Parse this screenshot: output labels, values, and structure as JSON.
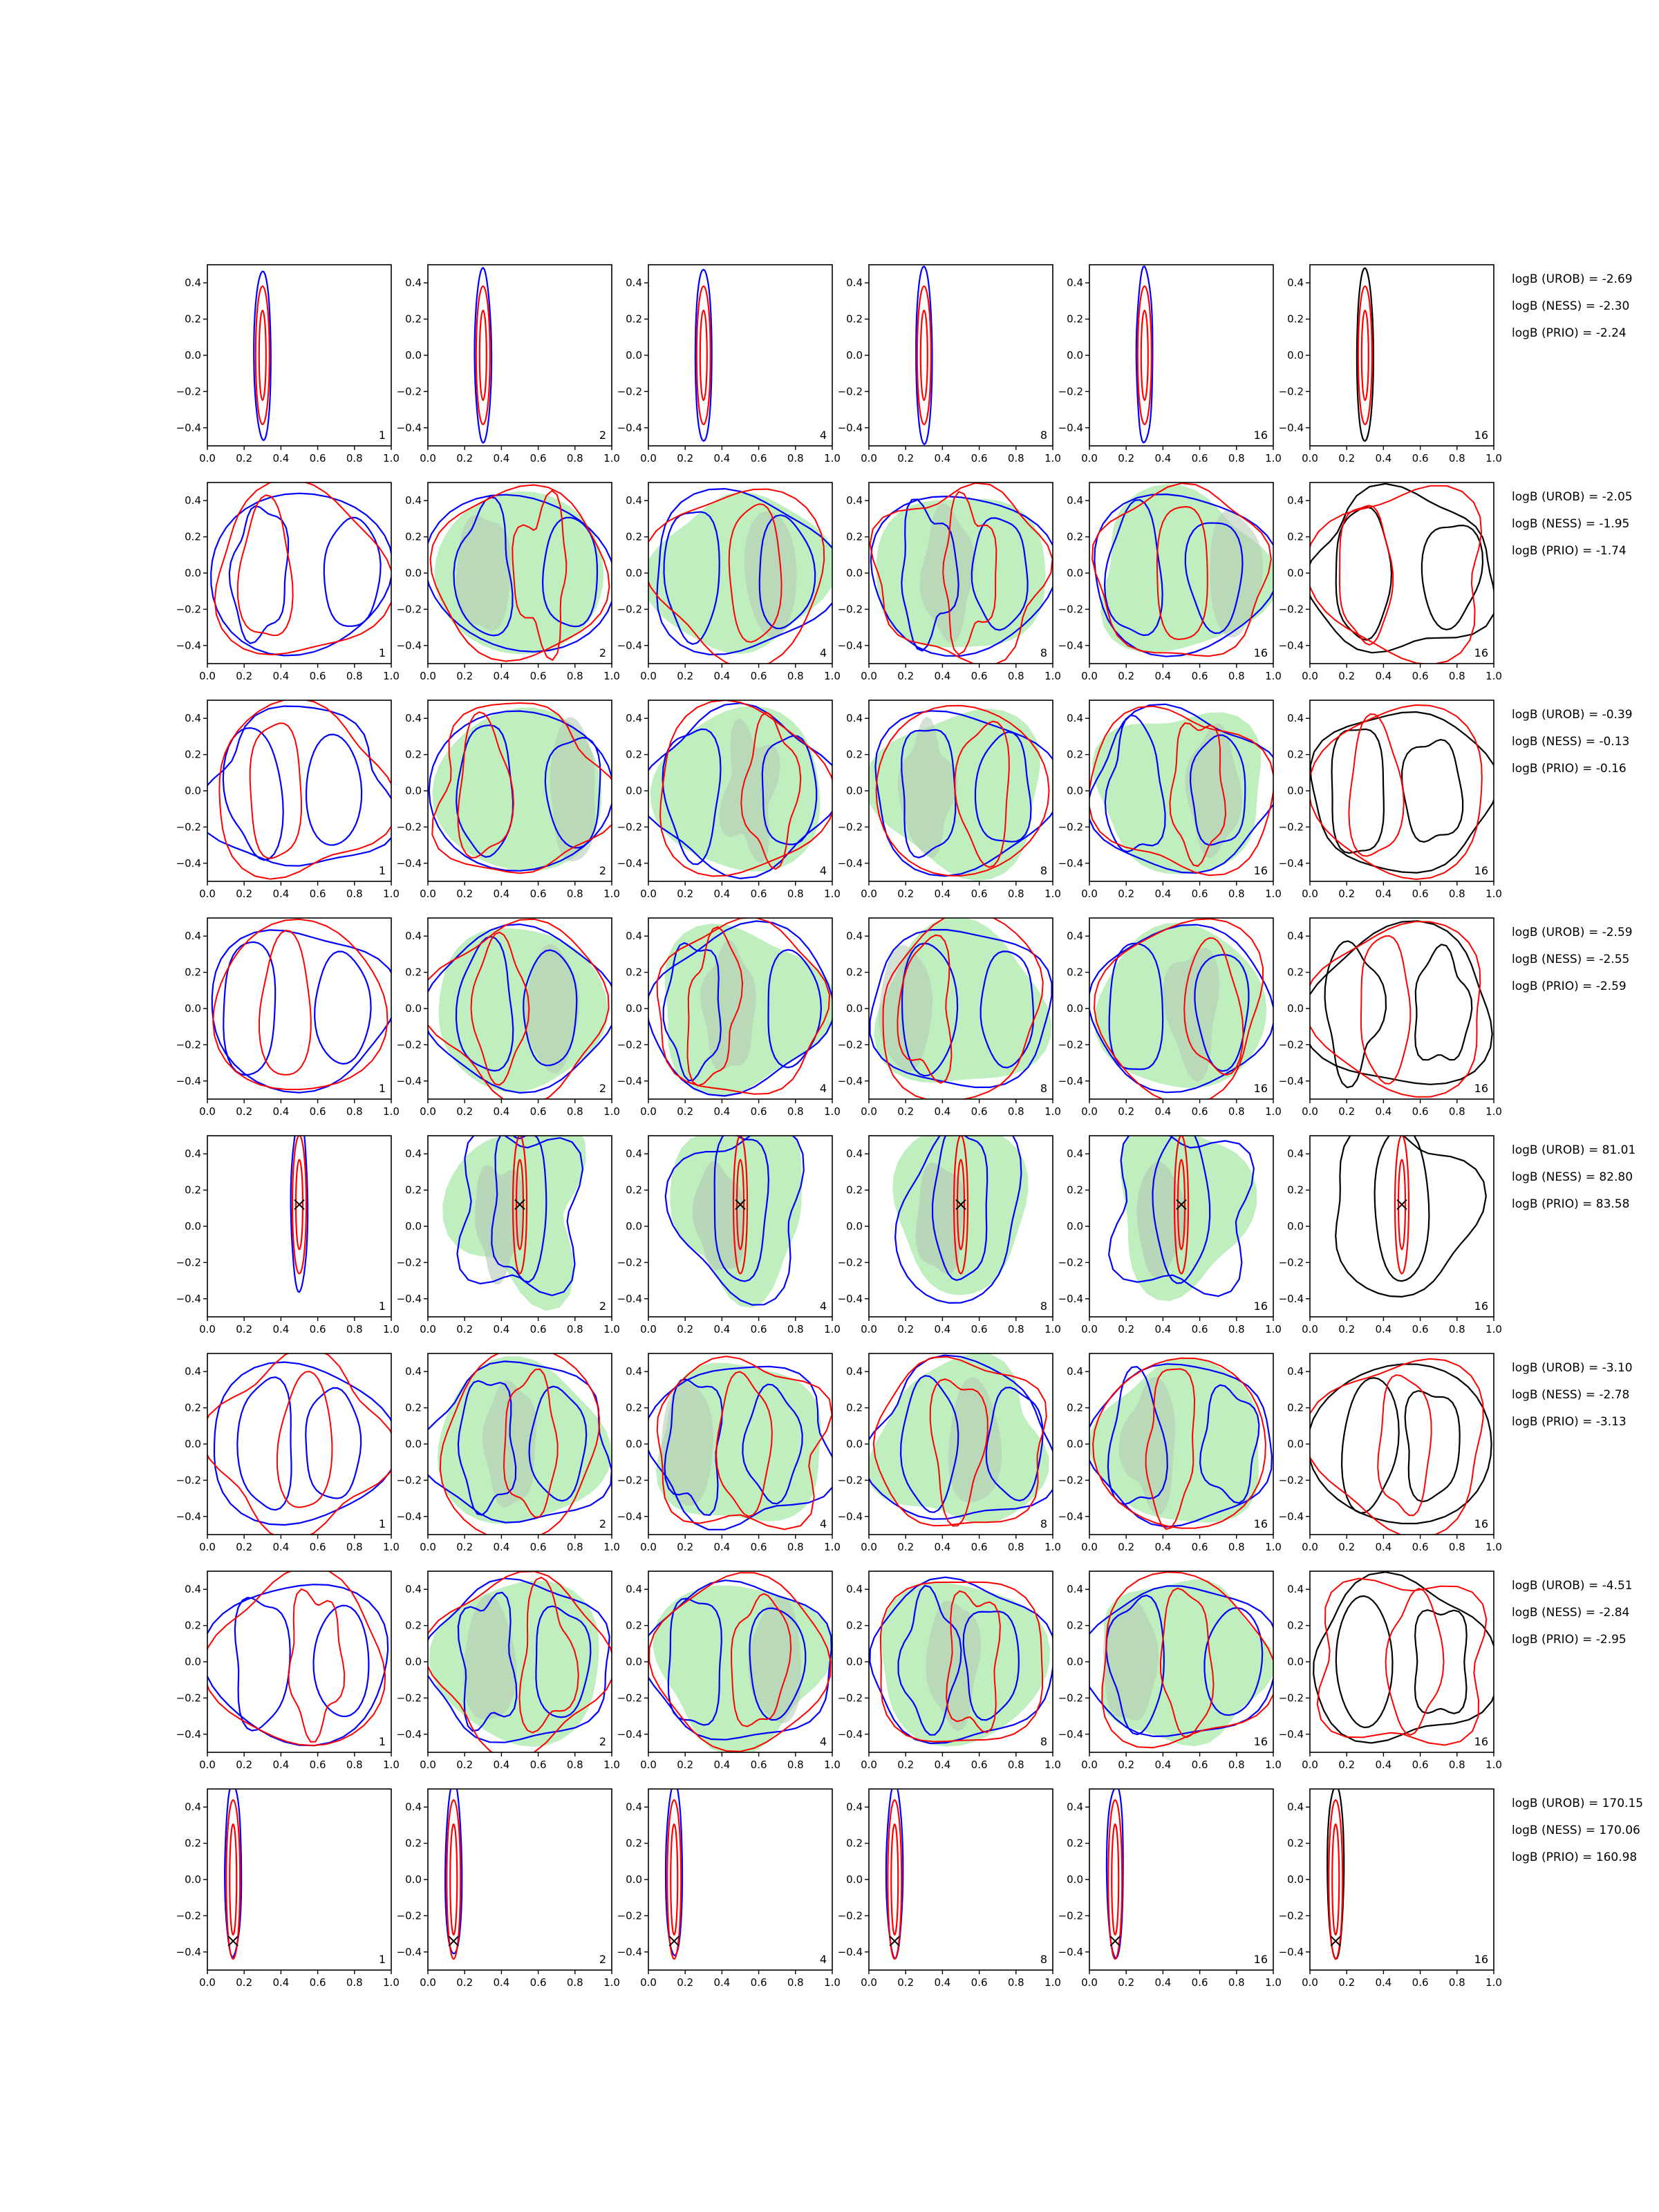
{
  "chart_data": {
    "type": "contour-grid",
    "rows": 8,
    "columns": 6,
    "xlim": [
      0.0,
      1.0
    ],
    "ylim": [
      -0.5,
      0.5
    ],
    "xticks": [
      "0.0",
      "0.2",
      "0.4",
      "0.6",
      "0.8",
      "1.0"
    ],
    "yticks": [
      "0.4",
      "0.2",
      "0.0",
      "−0.2",
      "−0.4"
    ],
    "ytick_values": [
      0.4,
      0.2,
      0.0,
      -0.2,
      -0.4
    ],
    "xtick_values": [
      0.0,
      0.2,
      0.4,
      0.6,
      0.8,
      1.0
    ],
    "panel_labels": [
      "1",
      "2",
      "4",
      "8",
      "16",
      "16"
    ],
    "colors": {
      "blue": "#0000ff",
      "red": "#ff0000",
      "black": "#000000",
      "green_fill": "#bfeebf",
      "gray_fill": "#b4c8b4"
    },
    "row_data": [
      {
        "logb": [
          "logB (UROB) = -2.69",
          "logB (NESS) = -2.30",
          "logB (PRIO) = -2.24"
        ],
        "pattern": "narrow",
        "cx": 0.3,
        "cy": 0.0,
        "marker": false
      },
      {
        "logb": [
          "logB (UROB) = -2.05",
          "logB (NESS) = -1.95",
          "logB (PRIO) = -1.74"
        ],
        "pattern": "broad",
        "cx": 0.8,
        "cy": 0.0,
        "marker": false
      },
      {
        "logb": [
          "logB (UROB) = -0.39",
          "logB (NESS) = -0.13",
          "logB (PRIO) = -0.16"
        ],
        "pattern": "broad",
        "cx": 0.2,
        "cy": 0.0,
        "marker": false
      },
      {
        "logb": [
          "logB (UROB) = -2.59",
          "logB (NESS) = -2.55",
          "logB (PRIO) = -2.59"
        ],
        "pattern": "broad",
        "cx": 0.5,
        "cy": 0.0,
        "marker": false
      },
      {
        "logb": [
          "logB (UROB) = 81.01",
          "logB (NESS) = 82.80",
          "logB (PRIO) = 83.58"
        ],
        "pattern": "central",
        "cx": 0.5,
        "cy": 0.12,
        "marker": true
      },
      {
        "logb": [
          "logB (UROB) = -3.10",
          "logB (NESS) = -2.78",
          "logB (PRIO) = -3.13"
        ],
        "pattern": "broad",
        "cx": 0.3,
        "cy": 0.0,
        "marker": false
      },
      {
        "logb": [
          "logB (UROB) = -4.51",
          "logB (NESS) = -2.84",
          "logB (PRIO) = -2.95"
        ],
        "pattern": "broad",
        "cx": 0.5,
        "cy": 0.0,
        "marker": false
      },
      {
        "logb": [
          "logB (UROB) = 170.15",
          "logB (NESS) = 170.06",
          "logB (PRIO) = 160.98"
        ],
        "pattern": "narrow",
        "cx": 0.14,
        "cy": -0.34,
        "marker": true
      }
    ]
  }
}
